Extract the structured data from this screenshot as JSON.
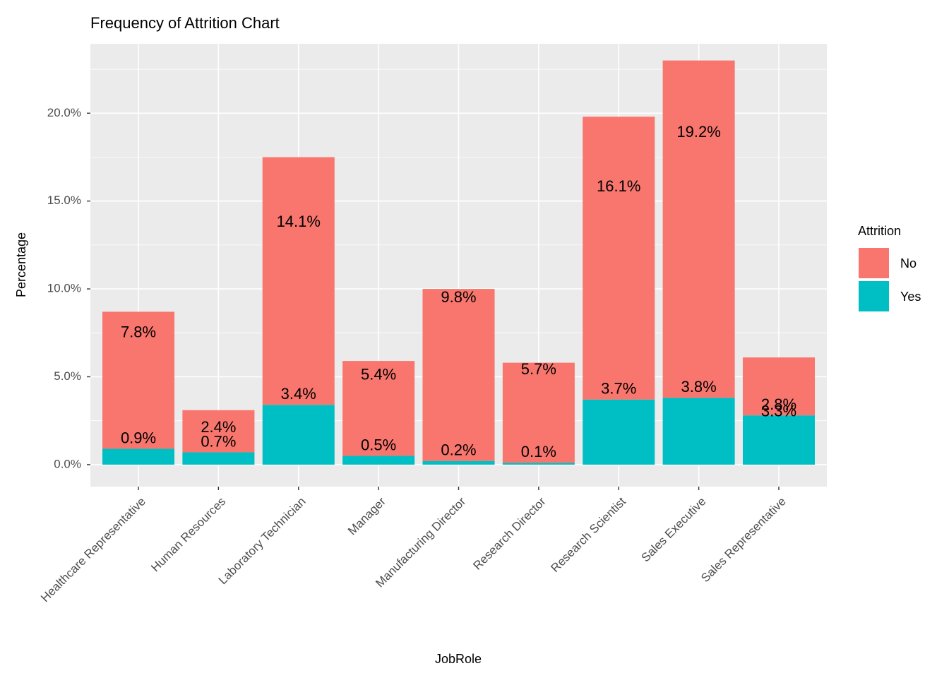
{
  "chart_data": {
    "type": "bar",
    "stacked": true,
    "title": "Frequency of Attrition Chart",
    "xlabel": "JobRole",
    "ylabel": "Percentage",
    "ylim": [
      -0.0125,
      0.2395
    ],
    "yticks": [
      0,
      0.05,
      0.1,
      0.15,
      0.2
    ],
    "ytick_labels": [
      "0.0%",
      "5.0%",
      "10.0%",
      "15.0%",
      "20.0%"
    ],
    "grid": true,
    "legend_position": "right",
    "legend_title": "Attrition",
    "categories": [
      "Healthcare Representative",
      "Human Resources",
      "Laboratory Technician",
      "Manager",
      "Manufacturing Director",
      "Research Director",
      "Research Scientist",
      "Sales Executive",
      "Sales Representative"
    ],
    "series": [
      {
        "name": "No",
        "color": "#F8766D",
        "values": [
          0.078,
          0.024,
          0.141,
          0.054,
          0.098,
          0.057,
          0.161,
          0.192,
          0.033
        ],
        "labels": [
          "7.8%",
          "2.4%",
          "14.1%",
          "5.4%",
          "9.8%",
          "5.7%",
          "16.1%",
          "19.2%",
          "3.3%"
        ]
      },
      {
        "name": "Yes",
        "color": "#00BFC4",
        "values": [
          0.009,
          0.007,
          0.034,
          0.005,
          0.002,
          0.001,
          0.037,
          0.038,
          0.028
        ],
        "labels": [
          "0.9%",
          "0.7%",
          "3.4%",
          "0.5%",
          "0.2%",
          "0.1%",
          "3.7%",
          "3.8%",
          "2.8%"
        ]
      }
    ]
  }
}
